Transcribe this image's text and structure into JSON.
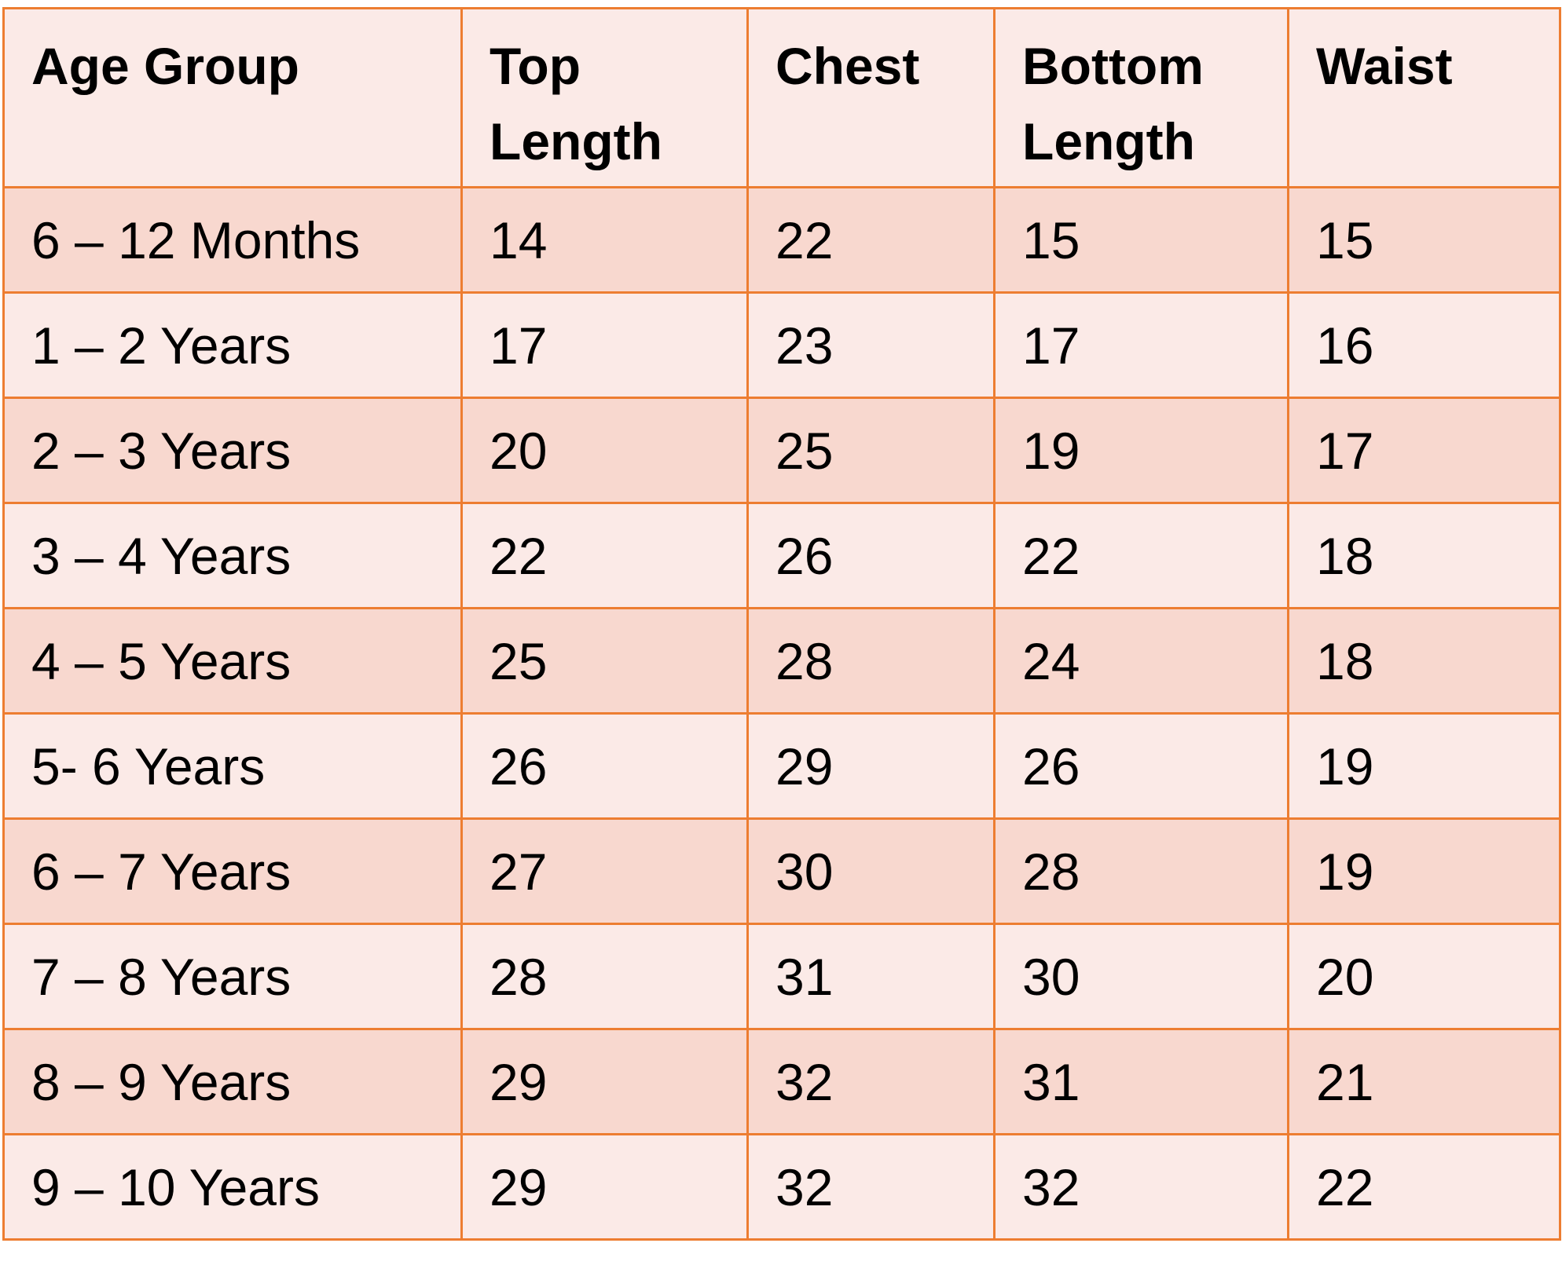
{
  "table": {
    "header": [
      "Age Group",
      "Top Length",
      "Chest",
      "Bottom Length",
      "Waist"
    ],
    "rows": [
      [
        "6 – 12 Months",
        14,
        22,
        15,
        15
      ],
      [
        "1 – 2 Years",
        17,
        23,
        17,
        16
      ],
      [
        "2 – 3 Years",
        20,
        25,
        19,
        17
      ],
      [
        "3 – 4 Years",
        22,
        26,
        22,
        18
      ],
      [
        "4 – 5 Years",
        25,
        28,
        24,
        18
      ],
      [
        "5- 6 Years",
        26,
        29,
        26,
        19
      ],
      [
        "6 – 7 Years",
        27,
        30,
        28,
        19
      ],
      [
        "7 – 8 Years",
        28,
        31,
        30,
        20
      ],
      [
        "8 – 9 Years",
        29,
        32,
        31,
        21
      ],
      [
        "9 – 10 Years",
        29,
        32,
        32,
        22
      ]
    ]
  }
}
